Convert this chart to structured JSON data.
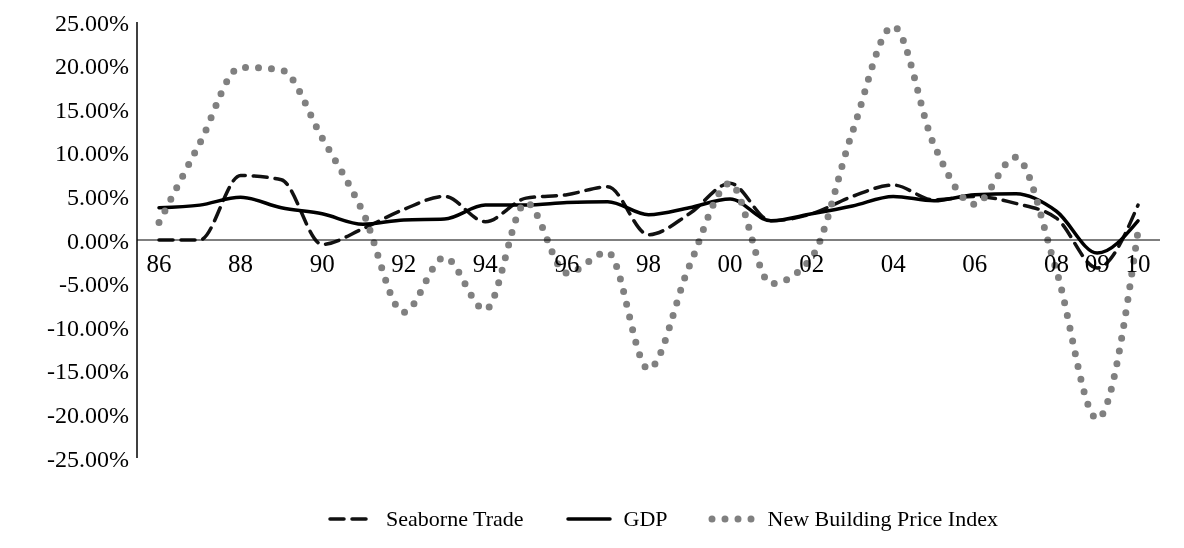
{
  "chart_data": {
    "type": "line",
    "categories": [
      "86",
      null,
      "88",
      null,
      "90",
      null,
      "92",
      null,
      "94",
      null,
      "96",
      null,
      "98",
      null,
      "00",
      null,
      "02",
      null,
      "04",
      null,
      "06",
      null,
      "08",
      "09",
      "10"
    ],
    "series": [
      {
        "name": "Seaborne Trade",
        "color": "#111111",
        "line_style": "dashed",
        "values": [
          0,
          0,
          7.4,
          6.9,
          -0.5,
          1.3,
          3.5,
          5.0,
          2.1,
          4.8,
          5.2,
          6.1,
          0.6,
          3.0,
          6.5,
          2.2,
          3.0,
          5.0,
          6.3,
          4.6,
          5.0,
          4.2,
          2.5,
          -3.2,
          4.0
        ]
      },
      {
        "name": "GDP",
        "color": "#000000",
        "line_style": "solid",
        "values": [
          3.7,
          4.0,
          4.9,
          3.7,
          3.0,
          1.8,
          2.3,
          2.4,
          4.0,
          4.0,
          4.3,
          4.4,
          2.9,
          3.7,
          4.7,
          2.2,
          3.0,
          3.9,
          5.0,
          4.5,
          5.2,
          5.3,
          3.3,
          -1.5,
          2.2
        ]
      },
      {
        "name": "New Building Price Index",
        "color": "#808080",
        "line_style": "dotted",
        "values": [
          2.0,
          11.1,
          19.8,
          19.5,
          11.7,
          3.2,
          -8.3,
          -2.0,
          -8.0,
          4.3,
          -3.8,
          -1.4,
          -14.8,
          -3.0,
          6.5,
          -5.0,
          -2.0,
          12.4,
          24.5,
          10.9,
          4.1,
          9.5,
          -3.5,
          -20.5,
          1.0
        ]
      }
    ],
    "ylim": [
      -25,
      25
    ],
    "yticks": [
      {
        "value": 25,
        "label": "25.00%"
      },
      {
        "value": 20,
        "label": "20.00%"
      },
      {
        "value": 15,
        "label": "15.00%"
      },
      {
        "value": 10,
        "label": "10.00%"
      },
      {
        "value": 5,
        "label": "5.00%"
      },
      {
        "value": 0,
        "label": "0.00%"
      },
      {
        "value": -5,
        "label": "-5.00%"
      },
      {
        "value": -10,
        "label": "-10.00%"
      },
      {
        "value": -15,
        "label": "-15.00%"
      },
      {
        "value": -20,
        "label": "-20.00%"
      },
      {
        "value": -25,
        "label": "-25.00%"
      }
    ],
    "grid": false,
    "legend": "bottom",
    "marker": "none"
  }
}
